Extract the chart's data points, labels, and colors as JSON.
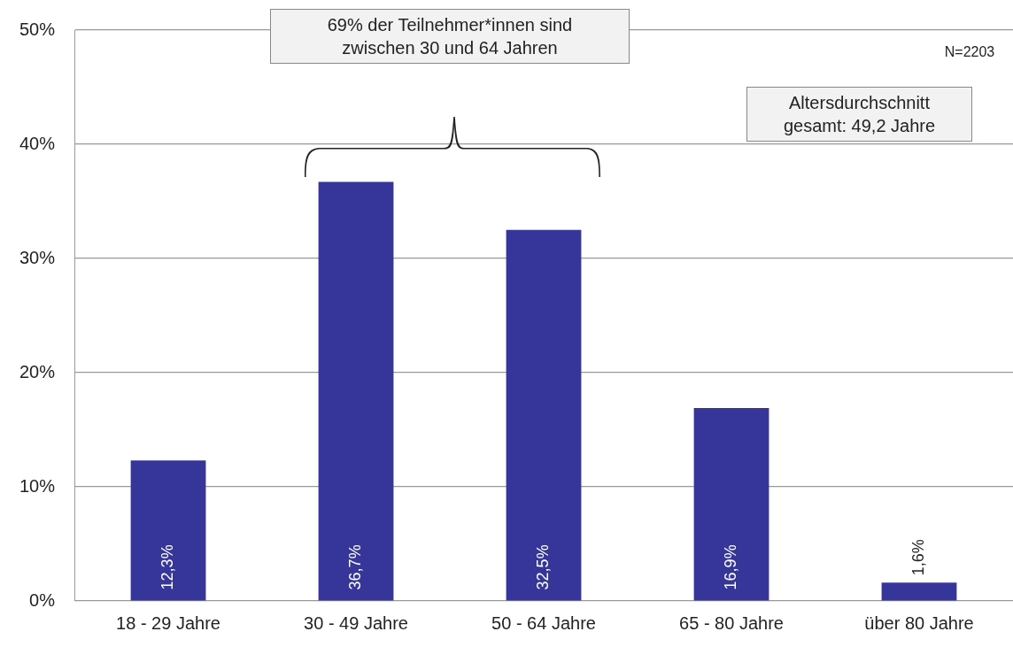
{
  "chart_data": {
    "type": "bar",
    "categories": [
      "18 - 29 Jahre",
      "30 - 49 Jahre",
      "50 - 64 Jahre",
      "65 - 80 Jahre",
      "über 80 Jahre"
    ],
    "values": [
      12.3,
      36.7,
      32.5,
      16.9,
      1.6
    ],
    "value_labels": [
      "12,3%",
      "36,7%",
      "32,5%",
      "16,9%",
      "1,6%"
    ],
    "color": "#35359a",
    "ylim": [
      0,
      50
    ],
    "yticks": [
      {
        "value": 0,
        "label": "0%"
      },
      {
        "value": 10,
        "label": "10%"
      },
      {
        "value": 20,
        "label": "20%"
      },
      {
        "value": 30,
        "label": "30%"
      },
      {
        "value": 40,
        "label": "40%"
      },
      {
        "value": 50,
        "label": "50%"
      }
    ],
    "grid": "y",
    "legend": false,
    "annotations": [
      "69% der Teilnehmer*innen sind zwischen 30 und 64 Jahren",
      "Altersdurchschnitt gesamt: 49,2 Jahre",
      "N=2203"
    ]
  }
}
